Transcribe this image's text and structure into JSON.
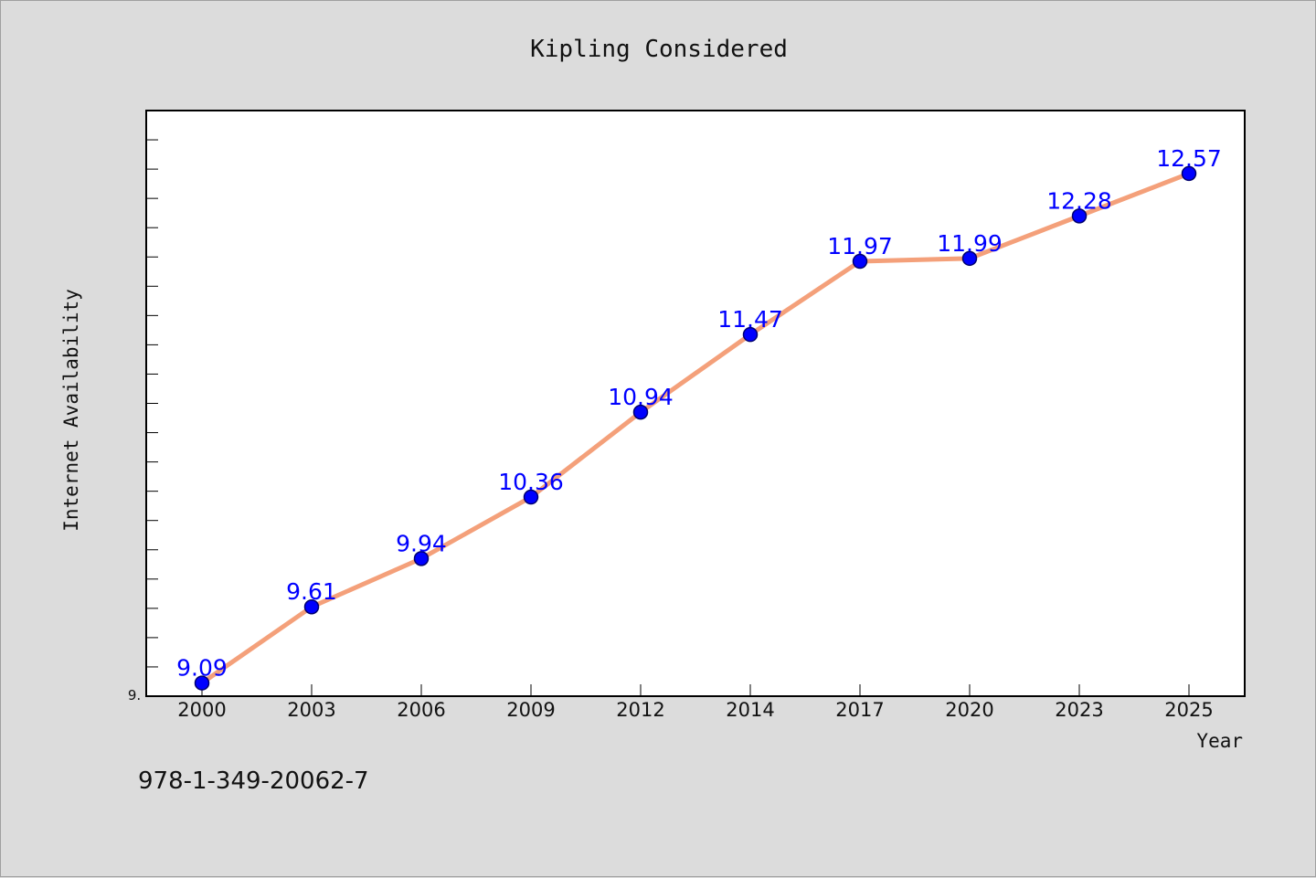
{
  "chart_data": {
    "type": "line",
    "title": "Kipling Considered",
    "xlabel": "Year",
    "ylabel": "Internet Availability",
    "categories": [
      "2000",
      "2003",
      "2006",
      "2009",
      "2012",
      "2014",
      "2017",
      "2020",
      "2023",
      "2025"
    ],
    "values": [
      9.09,
      9.61,
      9.94,
      10.36,
      10.94,
      11.47,
      11.97,
      11.99,
      12.28,
      12.57
    ],
    "data_labels": [
      "9.09",
      "9.61",
      "9.94",
      "10.36",
      "10.94",
      "11.47",
      "11.97",
      "11.99",
      "12.28",
      "12.57"
    ],
    "ylim": [
      9.0,
      13.0
    ],
    "y_tick_label": "9.",
    "line_color": "#f4a07a",
    "marker_color": "#0000ff",
    "grid": false,
    "legend": "none"
  },
  "footer": {
    "isbn": "978-1-349-20062-7"
  }
}
